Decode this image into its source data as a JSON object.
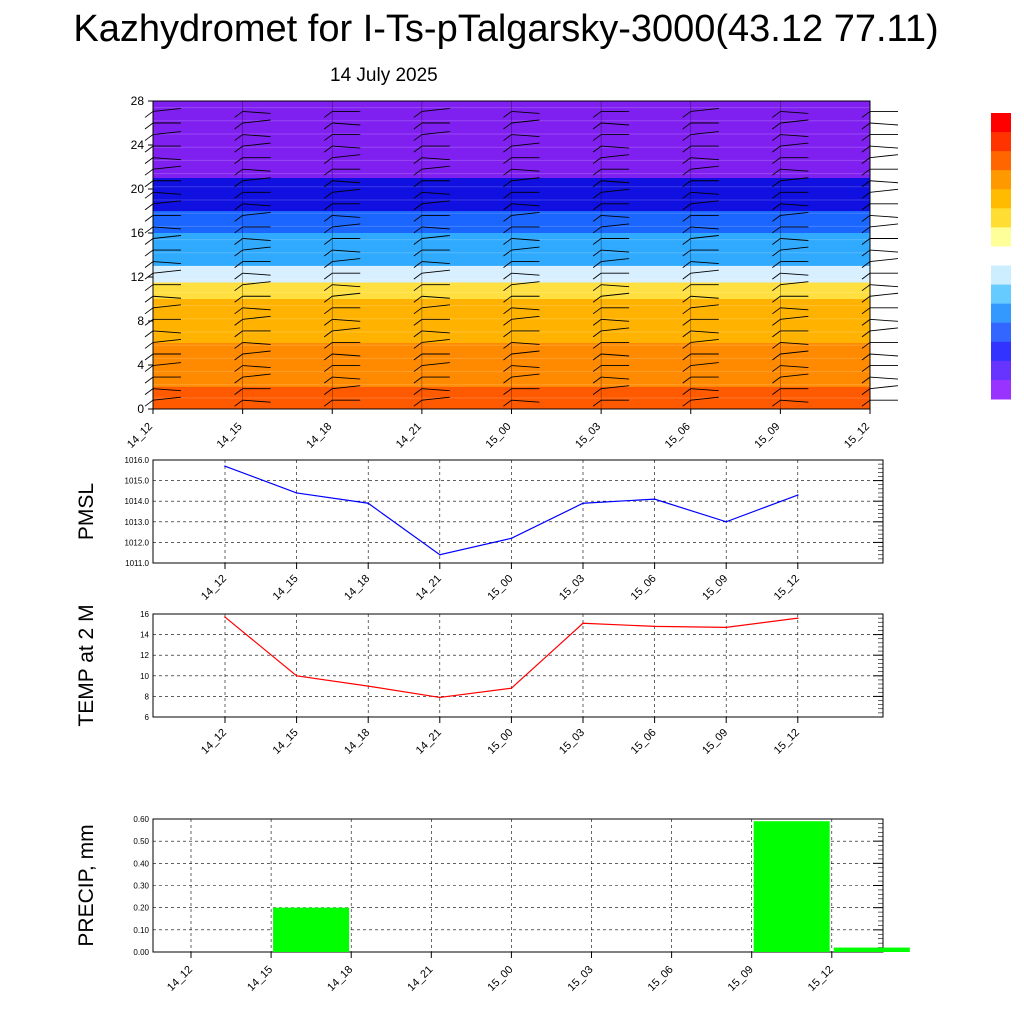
{
  "title": "Kazhydromet for I-Ts-pTalgarsky-3000(43.12 77.11)",
  "subtitle": "14 July 2025",
  "chart_data": [
    {
      "type": "heatmap",
      "description_of_content": "wind barbs over colored height field",
      "x_ticks": [
        "14_12",
        "14_15",
        "14_18",
        "14_21",
        "15_00",
        "15_03",
        "15_06",
        "15_09",
        "15_12"
      ],
      "y_ticks": [
        0,
        4,
        8,
        12,
        16,
        20,
        24,
        28
      ],
      "ylim": [
        0,
        28
      ],
      "color_bands": [
        {
          "from": 0,
          "to": 2,
          "color": "#ff5a00"
        },
        {
          "from": 2,
          "to": 6,
          "color": "#ff8a00"
        },
        {
          "from": 6,
          "to": 10,
          "color": "#ffb300"
        },
        {
          "from": 10,
          "to": 11.5,
          "color": "#ffe040"
        },
        {
          "from": 11.5,
          "to": 13,
          "color": "#d8efff"
        },
        {
          "from": 13,
          "to": 16,
          "color": "#30aaff"
        },
        {
          "from": 16,
          "to": 18,
          "color": "#1a66ff"
        },
        {
          "from": 18,
          "to": 21,
          "color": "#1010e0"
        },
        {
          "from": 21,
          "to": 28,
          "color": "#8020f0"
        }
      ]
    },
    {
      "type": "line",
      "ylabel": "PMSL",
      "x": [
        "14_12",
        "14_15",
        "14_18",
        "14_21",
        "15_00",
        "15_03",
        "15_06",
        "15_09",
        "15_12"
      ],
      "y_ticks": [
        "1011.0",
        "1012.0",
        "1013.0",
        "1014.0",
        "1015.0",
        "1016.0"
      ],
      "ylim": [
        1011,
        1016
      ],
      "series": [
        {
          "values": [
            1015.7,
            1014.4,
            1013.9,
            1011.4,
            1012.2,
            1013.9,
            1014.1,
            1013.0,
            1014.3
          ],
          "color": "#0000ff"
        }
      ]
    },
    {
      "type": "line",
      "ylabel": "TEMP at 2 M",
      "x": [
        "14_12",
        "14_15",
        "14_18",
        "14_21",
        "15_00",
        "15_03",
        "15_06",
        "15_09",
        "15_12"
      ],
      "y_ticks": [
        "6",
        "8",
        "10",
        "12",
        "14",
        "16"
      ],
      "ylim": [
        6,
        16
      ],
      "series": [
        {
          "values": [
            15.7,
            10.0,
            9.0,
            7.9,
            8.8,
            15.1,
            14.8,
            14.7,
            15.6
          ],
          "color": "#ff0000"
        }
      ]
    },
    {
      "type": "bar",
      "ylabel": "PRECIP, mm",
      "categories": [
        "14_12",
        "14_15",
        "14_18",
        "14_21",
        "15_00",
        "15_03",
        "15_06",
        "15_09",
        "15_12"
      ],
      "y_ticks": [
        "0.00",
        "0.10",
        "0.20",
        "0.30",
        "0.40",
        "0.50",
        "0.60"
      ],
      "ylim": [
        0,
        0.6
      ],
      "values": [
        0,
        0.2,
        0,
        0,
        0,
        0,
        0,
        0.59,
        0.02
      ],
      "color": "#00ff00"
    }
  ],
  "colorbar": [
    "#ff0000",
    "#ff3300",
    "#ff6600",
    "#ff9900",
    "#ffbb00",
    "#ffdd33",
    "#ffff99",
    "#ffffff",
    "#cceeff",
    "#66ccff",
    "#3399ff",
    "#3366ff",
    "#3333ff",
    "#6633ff",
    "#9933ff"
  ]
}
